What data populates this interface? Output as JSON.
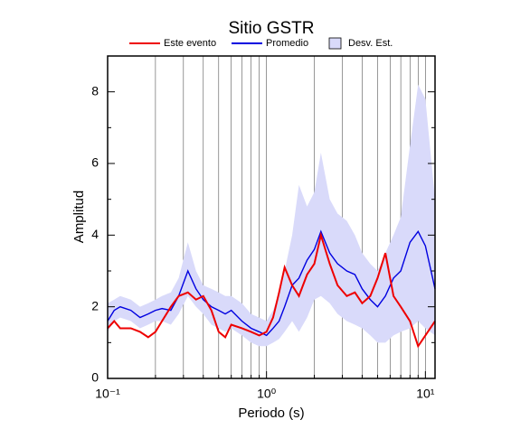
{
  "chart_data": {
    "type": "line",
    "title": "Sitio GSTR",
    "x_label": "Periodo (s)",
    "y_label": "Amplitud",
    "x_scale": "log",
    "grid": true,
    "legend": "top",
    "x": [
      0.1,
      0.11,
      0.12,
      0.14,
      0.16,
      0.18,
      0.2,
      0.22,
      0.25,
      0.28,
      0.32,
      0.36,
      0.4,
      0.45,
      0.5,
      0.55,
      0.6,
      0.7,
      0.8,
      0.9,
      1.0,
      1.1,
      1.2,
      1.3,
      1.45,
      1.6,
      1.8,
      2.0,
      2.2,
      2.5,
      2.8,
      3.2,
      3.6,
      4.0,
      4.5,
      5.0,
      5.6,
      6.3,
      7.0,
      8.0,
      9.0,
      10,
      11.5
    ],
    "series": [
      {
        "name": "Desv. Est.",
        "color": "#d9dafa",
        "area": true,
        "lower": [
          1.3,
          1.6,
          1.7,
          1.6,
          1.4,
          1.5,
          1.6,
          1.6,
          1.5,
          1.8,
          2.3,
          2.0,
          1.8,
          1.5,
          1.4,
          1.3,
          1.4,
          1.2,
          1.0,
          0.9,
          0.9,
          1.0,
          1.1,
          1.3,
          1.6,
          1.3,
          1.7,
          2.2,
          2.3,
          2.1,
          1.8,
          1.6,
          1.5,
          1.4,
          1.2,
          1.0,
          1.0,
          1.2,
          1.3,
          1.4,
          1.6,
          1.4,
          1.2
        ],
        "upper": [
          2.1,
          2.2,
          2.3,
          2.2,
          2.0,
          2.1,
          2.2,
          2.3,
          2.4,
          2.8,
          3.8,
          3.0,
          2.6,
          2.5,
          2.4,
          2.3,
          2.3,
          2.1,
          1.8,
          1.7,
          1.6,
          1.9,
          2.4,
          3.0,
          4.0,
          5.4,
          4.8,
          5.2,
          6.3,
          5.0,
          4.6,
          4.4,
          4.0,
          3.5,
          3.2,
          3.0,
          3.5,
          4.0,
          4.5,
          6.5,
          8.2,
          7.8,
          5.0
        ]
      },
      {
        "name": "Promedio",
        "color": "#0000e0",
        "values": [
          1.6,
          1.9,
          2.0,
          1.9,
          1.7,
          1.8,
          1.9,
          1.95,
          1.9,
          2.3,
          3.0,
          2.5,
          2.2,
          2.0,
          1.9,
          1.8,
          1.9,
          1.6,
          1.4,
          1.3,
          1.2,
          1.4,
          1.6,
          2.0,
          2.6,
          2.8,
          3.3,
          3.6,
          4.1,
          3.5,
          3.2,
          3.0,
          2.9,
          2.5,
          2.2,
          2.0,
          2.3,
          2.8,
          3.0,
          3.8,
          4.1,
          3.7,
          2.5
        ]
      },
      {
        "name": "Este evento",
        "color": "#ee0000",
        "values": [
          1.4,
          1.6,
          1.4,
          1.4,
          1.3,
          1.15,
          1.3,
          1.6,
          2.0,
          2.3,
          2.4,
          2.2,
          2.3,
          1.9,
          1.3,
          1.15,
          1.5,
          1.4,
          1.3,
          1.2,
          1.3,
          1.7,
          2.4,
          3.1,
          2.6,
          2.3,
          2.9,
          3.2,
          4.0,
          3.2,
          2.6,
          2.3,
          2.4,
          2.1,
          2.3,
          2.8,
          3.5,
          2.3,
          2.0,
          1.6,
          0.9,
          1.2,
          1.6
        ]
      }
    ],
    "legend_order": [
      2,
      1,
      0
    ],
    "xlim": [
      0.1,
      11.5
    ],
    "ylim": [
      0,
      9
    ],
    "xticks": [
      {
        "value": 0.1,
        "label": "10⁻¹"
      },
      {
        "value": 1,
        "label": "10⁰"
      },
      {
        "value": 10,
        "label": "10¹"
      }
    ],
    "xminorticks": [
      0.2,
      0.3,
      0.4,
      0.5,
      0.6,
      0.7,
      0.8,
      0.9,
      2,
      3,
      4,
      5,
      6,
      7,
      8,
      9
    ],
    "yticks": [
      0,
      2,
      4,
      6,
      8
    ],
    "yminorticks": [
      1,
      3,
      5,
      7
    ]
  }
}
